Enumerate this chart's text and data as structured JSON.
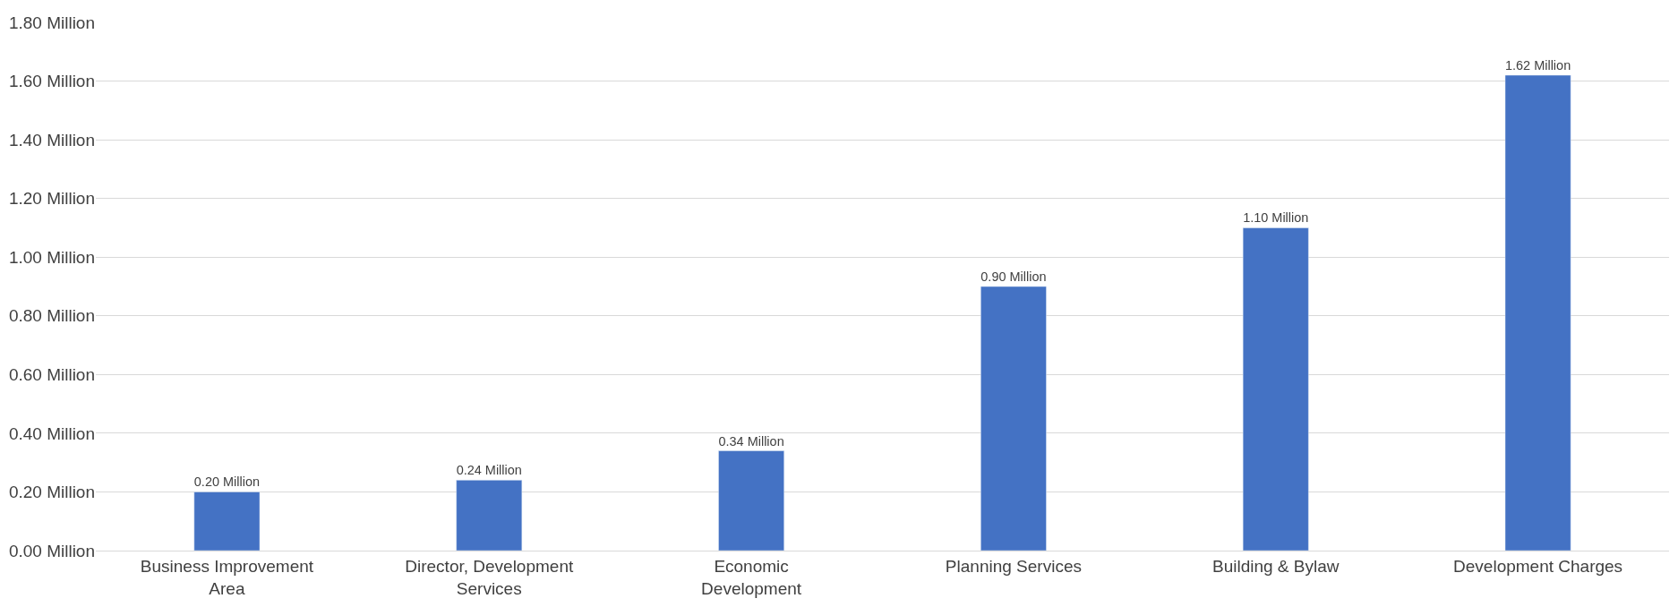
{
  "chart_data": {
    "type": "bar",
    "categories": [
      "Business Improvement Area",
      "Director, Development Services",
      "Economic Development",
      "Planning Services",
      "Building & Bylaw",
      "Development Charges"
    ],
    "values": [
      0.2,
      0.24,
      0.34,
      0.9,
      1.1,
      1.62
    ],
    "value_labels": [
      "0.20 Million",
      "0.24 Million",
      "0.34 Million",
      "0.90 Million",
      "1.10 Million",
      "1.62 Million"
    ],
    "color": "#4472c4",
    "ylim": [
      0,
      1.8
    ],
    "yticks": [
      {
        "value": 0,
        "label": "0.00 Million"
      },
      {
        "value": 0.2,
        "label": "0.20 Million"
      },
      {
        "value": 0.4,
        "label": "0.40 Million"
      },
      {
        "value": 0.6,
        "label": "0.60 Million"
      },
      {
        "value": 0.8,
        "label": "0.80 Million"
      },
      {
        "value": 1.0,
        "label": "1.00 Million"
      },
      {
        "value": 1.2,
        "label": "1.20 Million"
      },
      {
        "value": 1.4,
        "label": "1.40 Million"
      },
      {
        "value": 1.6,
        "label": "1.60 Million"
      },
      {
        "value": 1.8,
        "label": "1.80 Million"
      }
    ],
    "grid": "y"
  }
}
